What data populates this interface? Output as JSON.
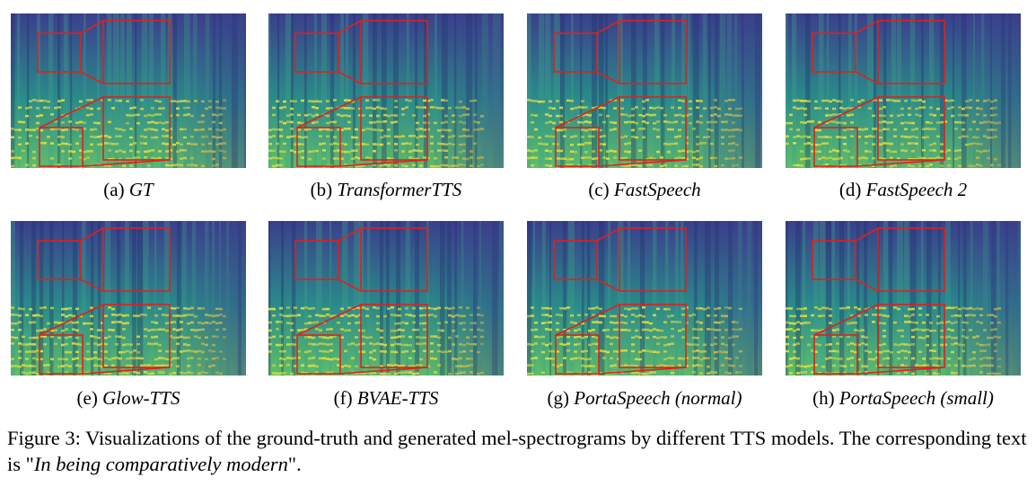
{
  "panels": [
    {
      "label": "(a)",
      "model": "GT"
    },
    {
      "label": "(b)",
      "model": "TransformerTTS"
    },
    {
      "label": "(c)",
      "model": "FastSpeech"
    },
    {
      "label": "(d)",
      "model": "FastSpeech 2"
    },
    {
      "label": "(e)",
      "model": "Glow-TTS"
    },
    {
      "label": "(f)",
      "model": "BVAE-TTS"
    },
    {
      "label": "(g)",
      "model": "PortaSpeech (normal)"
    },
    {
      "label": "(h)",
      "model": "PortaSpeech (small)"
    }
  ],
  "figure_caption": {
    "prefix": "Figure 3: Visualizations of the ground-truth and generated mel-spectrograms by different TTS models. The corresponding text is \"",
    "quote": "In being comparatively modern",
    "suffix": "\"."
  },
  "colors": {
    "spec_dark": "#3b3f8c",
    "spec_mid": "#2a8c8a",
    "spec_bright": "#e8e03a",
    "zoom_box": "#e0201c"
  }
}
